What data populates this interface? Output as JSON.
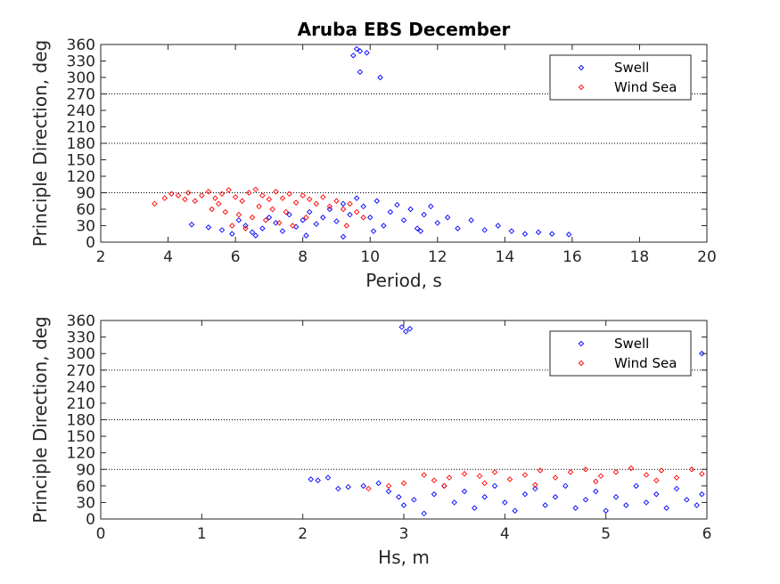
{
  "chart_data": [
    {
      "type": "scatter",
      "title": "Aruba EBS December",
      "xlabel": "Period, s",
      "ylabel": "Principle Direction, deg",
      "xlim": [
        2,
        20
      ],
      "ylim": [
        0,
        360
      ],
      "xticks": [
        "2",
        "4",
        "6",
        "8",
        "10",
        "12",
        "14",
        "16",
        "18",
        "20"
      ],
      "yticks": [
        "0",
        "30",
        "60",
        "90",
        "120",
        "150",
        "180",
        "210",
        "240",
        "270",
        "300",
        "330",
        "360"
      ],
      "reference_lines": [
        90,
        180,
        270
      ],
      "legend_position": "top-right",
      "series": [
        {
          "name": "Swell",
          "color": "#0000ff",
          "marker": "diamond",
          "points": [
            [
              4.7,
              32
            ],
            [
              5.2,
              27
            ],
            [
              5.6,
              22
            ],
            [
              5.9,
              15
            ],
            [
              6.1,
              40
            ],
            [
              6.3,
              30
            ],
            [
              6.5,
              18
            ],
            [
              6.8,
              25
            ],
            [
              7.0,
              45
            ],
            [
              7.2,
              35
            ],
            [
              7.4,
              20
            ],
            [
              7.6,
              50
            ],
            [
              7.8,
              28
            ],
            [
              8.0,
              40
            ],
            [
              8.2,
              55
            ],
            [
              8.4,
              33
            ],
            [
              8.6,
              45
            ],
            [
              8.8,
              60
            ],
            [
              9.0,
              38
            ],
            [
              9.2,
              70
            ],
            [
              9.4,
              50
            ],
            [
              9.6,
              80
            ],
            [
              9.8,
              65
            ],
            [
              10.0,
              45
            ],
            [
              10.2,
              75
            ],
            [
              10.4,
              30
            ],
            [
              10.6,
              55
            ],
            [
              10.8,
              68
            ],
            [
              11.0,
              40
            ],
            [
              11.2,
              60
            ],
            [
              11.4,
              25
            ],
            [
              11.6,
              50
            ],
            [
              11.8,
              65
            ],
            [
              12.0,
              35
            ],
            [
              12.3,
              45
            ],
            [
              12.6,
              25
            ],
            [
              13.0,
              40
            ],
            [
              13.4,
              22
            ],
            [
              13.8,
              30
            ],
            [
              14.2,
              20
            ],
            [
              14.6,
              15
            ],
            [
              15.0,
              18
            ],
            [
              15.4,
              15
            ],
            [
              15.9,
              14
            ],
            [
              9.2,
              10
            ],
            [
              8.1,
              12
            ],
            [
              6.6,
              12
            ],
            [
              10.1,
              20
            ],
            [
              11.5,
              20
            ],
            [
              9.6,
              352
            ],
            [
              9.7,
              348
            ],
            [
              9.9,
              345
            ],
            [
              9.5,
              340
            ],
            [
              9.7,
              310
            ],
            [
              10.3,
              300
            ]
          ]
        },
        {
          "name": "Wind Sea",
          "color": "#ff0000",
          "marker": "diamond",
          "points": [
            [
              3.6,
              70
            ],
            [
              3.9,
              80
            ],
            [
              4.1,
              88
            ],
            [
              4.3,
              85
            ],
            [
              4.5,
              78
            ],
            [
              4.6,
              90
            ],
            [
              4.8,
              75
            ],
            [
              5.0,
              85
            ],
            [
              5.2,
              92
            ],
            [
              5.4,
              80
            ],
            [
              5.5,
              70
            ],
            [
              5.6,
              88
            ],
            [
              5.8,
              95
            ],
            [
              6.0,
              82
            ],
            [
              6.2,
              75
            ],
            [
              6.4,
              90
            ],
            [
              6.6,
              96
            ],
            [
              6.8,
              85
            ],
            [
              7.0,
              78
            ],
            [
              7.2,
              92
            ],
            [
              7.4,
              80
            ],
            [
              7.6,
              88
            ],
            [
              7.8,
              72
            ],
            [
              8.0,
              85
            ],
            [
              8.2,
              78
            ],
            [
              8.4,
              70
            ],
            [
              8.6,
              82
            ],
            [
              8.8,
              65
            ],
            [
              9.0,
              75
            ],
            [
              9.2,
              60
            ],
            [
              9.4,
              70
            ],
            [
              9.6,
              55
            ],
            [
              5.3,
              60
            ],
            [
              5.7,
              55
            ],
            [
              6.1,
              50
            ],
            [
              6.5,
              45
            ],
            [
              6.9,
              40
            ],
            [
              7.3,
              35
            ],
            [
              7.7,
              30
            ],
            [
              8.1,
              45
            ],
            [
              5.9,
              30
            ],
            [
              6.3,
              25
            ],
            [
              6.7,
              65
            ],
            [
              7.1,
              60
            ],
            [
              7.5,
              55
            ],
            [
              9.8,
              45
            ],
            [
              9.3,
              30
            ]
          ]
        }
      ]
    },
    {
      "type": "scatter",
      "title": "",
      "xlabel": "Hs, m",
      "ylabel": "Principle Direction, deg",
      "xlim": [
        0,
        6
      ],
      "ylim": [
        0,
        360
      ],
      "xticks": [
        "0",
        "1",
        "2",
        "3",
        "4",
        "5",
        "6"
      ],
      "yticks": [
        "0",
        "30",
        "60",
        "90",
        "120",
        "150",
        "180",
        "210",
        "240",
        "270",
        "300",
        "330",
        "360"
      ],
      "reference_lines": [
        90,
        180,
        270
      ],
      "legend_position": "top-right",
      "series": [
        {
          "name": "Swell",
          "color": "#0000ff",
          "marker": "diamond",
          "points": [
            [
              2.08,
              72
            ],
            [
              2.15,
              70
            ],
            [
              2.25,
              75
            ],
            [
              2.35,
              55
            ],
            [
              2.45,
              58
            ],
            [
              2.6,
              60
            ],
            [
              2.75,
              65
            ],
            [
              2.85,
              50
            ],
            [
              2.95,
              40
            ],
            [
              3.0,
              25
            ],
            [
              3.1,
              35
            ],
            [
              3.2,
              10
            ],
            [
              3.3,
              45
            ],
            [
              3.4,
              60
            ],
            [
              3.5,
              30
            ],
            [
              3.6,
              50
            ],
            [
              3.7,
              20
            ],
            [
              3.8,
              40
            ],
            [
              3.9,
              60
            ],
            [
              4.0,
              30
            ],
            [
              4.1,
              15
            ],
            [
              4.2,
              45
            ],
            [
              4.3,
              55
            ],
            [
              4.4,
              25
            ],
            [
              4.5,
              40
            ],
            [
              4.6,
              60
            ],
            [
              4.7,
              20
            ],
            [
              4.8,
              35
            ],
            [
              4.9,
              50
            ],
            [
              5.0,
              15
            ],
            [
              5.1,
              40
            ],
            [
              5.2,
              25
            ],
            [
              5.3,
              60
            ],
            [
              5.4,
              30
            ],
            [
              5.5,
              45
            ],
            [
              5.6,
              20
            ],
            [
              5.7,
              55
            ],
            [
              5.8,
              35
            ],
            [
              5.9,
              25
            ],
            [
              5.95,
              45
            ],
            [
              2.98,
              348
            ],
            [
              3.02,
              340
            ],
            [
              3.06,
              345
            ],
            [
              5.95,
              300
            ]
          ]
        },
        {
          "name": "Wind Sea",
          "color": "#ff0000",
          "marker": "diamond",
          "points": [
            [
              2.65,
              55
            ],
            [
              2.85,
              60
            ],
            [
              3.0,
              65
            ],
            [
              3.2,
              80
            ],
            [
              3.3,
              70
            ],
            [
              3.45,
              75
            ],
            [
              3.6,
              82
            ],
            [
              3.75,
              78
            ],
            [
              3.9,
              85
            ],
            [
              4.05,
              72
            ],
            [
              4.2,
              80
            ],
            [
              4.35,
              88
            ],
            [
              4.5,
              75
            ],
            [
              4.65,
              85
            ],
            [
              4.8,
              90
            ],
            [
              4.95,
              78
            ],
            [
              5.1,
              85
            ],
            [
              5.25,
              92
            ],
            [
              5.4,
              80
            ],
            [
              5.55,
              88
            ],
            [
              5.7,
              75
            ],
            [
              5.85,
              90
            ],
            [
              5.95,
              82
            ],
            [
              3.4,
              60
            ],
            [
              3.8,
              65
            ],
            [
              4.3,
              62
            ],
            [
              4.9,
              68
            ],
            [
              5.5,
              70
            ]
          ]
        }
      ]
    }
  ]
}
